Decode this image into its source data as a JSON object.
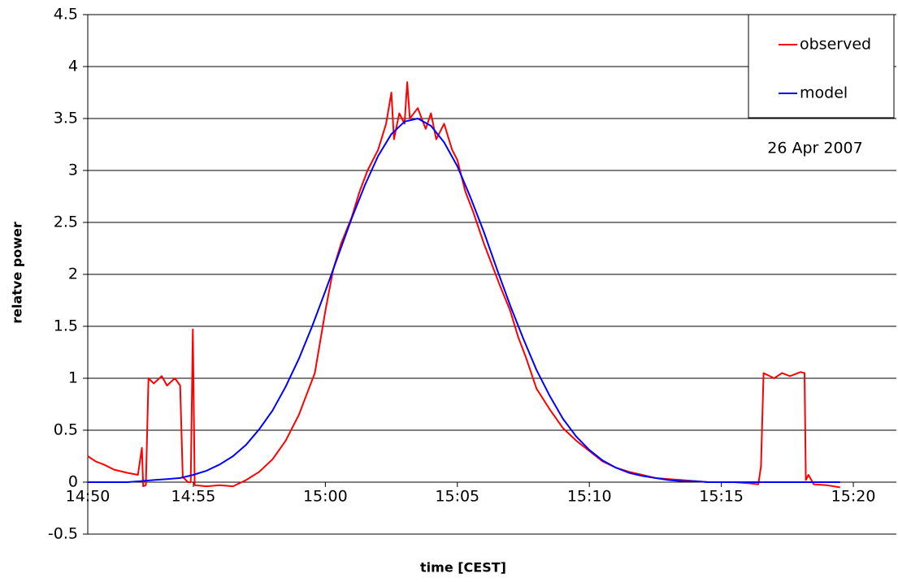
{
  "chart_data": {
    "type": "line",
    "title": null,
    "annotation": "26 Apr 2007",
    "y_label": "relatve power",
    "x_label": "time [CEST]",
    "xlim": [
      891,
      921.63
    ],
    "ylim": [
      -0.5,
      4.5
    ],
    "xticks": [
      {
        "value": 890,
        "label": "14:50"
      },
      {
        "value": 895,
        "label": "14:55"
      },
      {
        "value": 900,
        "label": "15:00"
      },
      {
        "value": 905,
        "label": "15:05"
      },
      {
        "value": 910,
        "label": "15:10"
      },
      {
        "value": 915,
        "label": "15:15"
      },
      {
        "value": 920,
        "label": "15:20"
      }
    ],
    "yticks": [
      -0.5,
      0,
      0.5,
      1,
      1.5,
      2,
      2.5,
      3,
      3.5,
      4,
      4.5
    ],
    "grid": true,
    "legend": "top-right",
    "series": [
      {
        "name": "observed",
        "color": "#ff0000",
        "x": [
          891,
          891.3,
          891.6,
          892,
          892.5,
          892.9,
          893.05,
          893.1,
          893.2,
          893.3,
          893.5,
          893.8,
          894,
          894.3,
          894.5,
          894.6,
          894.8,
          894.9,
          894.98,
          895.05,
          895.5,
          896,
          896.5,
          897,
          897.5,
          898,
          898.5,
          899,
          899.3,
          899.6,
          900,
          900.3,
          900.6,
          901,
          901.3,
          901.6,
          902,
          902.3,
          902.5,
          902.6,
          902.8,
          903,
          903.1,
          903.2,
          903.5,
          903.8,
          904,
          904.2,
          904.5,
          904.8,
          905,
          905.3,
          905.6,
          906,
          906.3,
          906.6,
          907,
          907.3,
          907.6,
          908,
          908.5,
          909,
          909.5,
          910,
          910.5,
          911,
          911.5,
          912,
          912.5,
          913,
          913.5,
          914,
          914.5,
          915,
          915.5,
          916,
          916.4,
          916.5,
          916.6,
          917,
          917.3,
          917.6,
          918,
          918.15,
          918.2,
          918.3,
          918.5,
          919,
          919.5
        ],
        "values": [
          0.25,
          0.2,
          0.17,
          0.12,
          0.09,
          0.07,
          0.33,
          -0.04,
          -0.03,
          1.0,
          0.95,
          1.02,
          0.93,
          1.0,
          0.93,
          0.05,
          0,
          0,
          1.47,
          -0.03,
          -0.04,
          -0.03,
          -0.04,
          0.02,
          0.1,
          0.22,
          0.4,
          0.65,
          0.85,
          1.05,
          1.65,
          2.05,
          2.3,
          2.55,
          2.8,
          3.0,
          3.2,
          3.45,
          3.75,
          3.3,
          3.55,
          3.45,
          3.85,
          3.5,
          3.6,
          3.4,
          3.55,
          3.3,
          3.45,
          3.2,
          3.1,
          2.8,
          2.6,
          2.3,
          2.1,
          1.9,
          1.65,
          1.4,
          1.2,
          0.9,
          0.7,
          0.52,
          0.4,
          0.3,
          0.2,
          0.14,
          0.1,
          0.07,
          0.04,
          0.03,
          0.02,
          0.01,
          0,
          0,
          0,
          -0.01,
          -0.02,
          0.15,
          1.05,
          1.0,
          1.05,
          1.02,
          1.06,
          1.05,
          0.02,
          0.07,
          -0.02,
          -0.03,
          -0.05
        ]
      },
      {
        "name": "model",
        "color": "#0000ff",
        "x": [
          891,
          891.5,
          892,
          892.5,
          893,
          893.5,
          894,
          894.5,
          895,
          895.5,
          896,
          896.5,
          897,
          897.5,
          898,
          898.5,
          899,
          899.5,
          900,
          900.5,
          901,
          901.5,
          902,
          902.5,
          903,
          903.5,
          904,
          904.5,
          905,
          905.5,
          906,
          906.5,
          907,
          907.5,
          908,
          908.5,
          909,
          909.5,
          910,
          910.5,
          911,
          911.5,
          912,
          912.5,
          913,
          913.5,
          914,
          914.5,
          915,
          915.5,
          916,
          916.5,
          917,
          917.5,
          918,
          918.5,
          919,
          919.5
        ],
        "values": [
          0,
          0,
          0,
          0,
          0.01,
          0.02,
          0.03,
          0.04,
          0.07,
          0.11,
          0.17,
          0.25,
          0.36,
          0.51,
          0.69,
          0.92,
          1.19,
          1.5,
          1.84,
          2.19,
          2.54,
          2.86,
          3.14,
          3.35,
          3.47,
          3.5,
          3.43,
          3.27,
          3.04,
          2.74,
          2.41,
          2.05,
          1.7,
          1.38,
          1.08,
          0.83,
          0.61,
          0.44,
          0.31,
          0.21,
          0.14,
          0.09,
          0.06,
          0.04,
          0.02,
          0.01,
          0.01,
          0,
          0,
          0,
          0,
          0,
          0,
          0,
          0,
          0,
          0,
          0
        ]
      }
    ]
  }
}
